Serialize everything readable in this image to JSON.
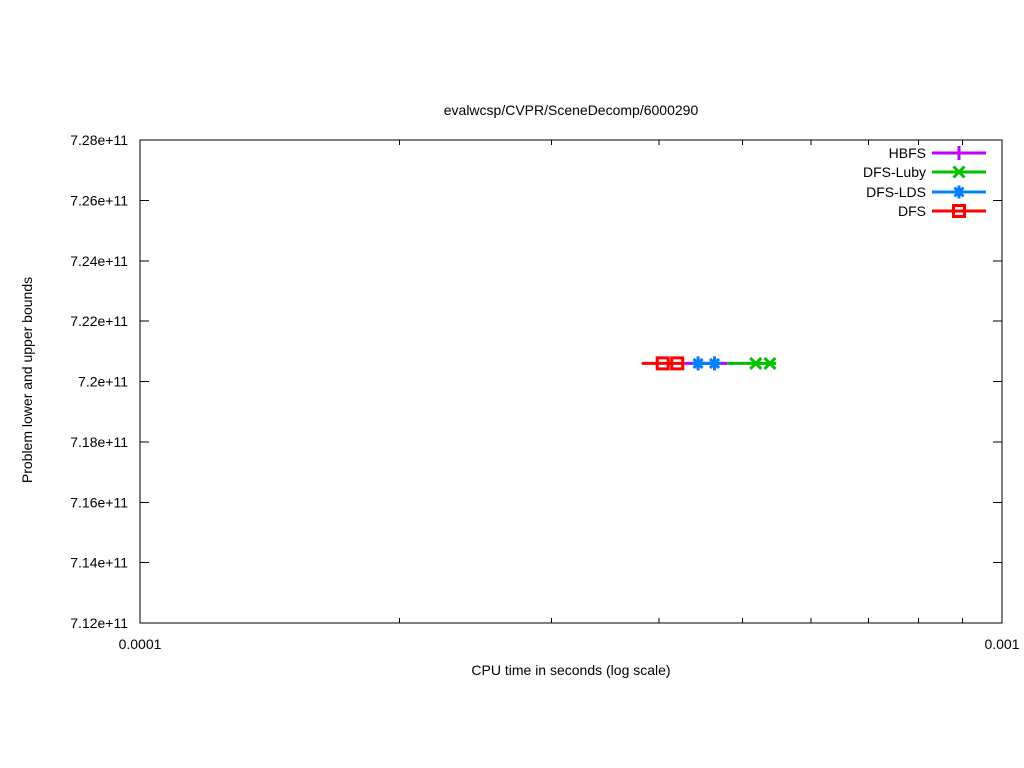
{
  "chart_data": {
    "type": "line",
    "title": "evalwcsp/CVPR/SceneDecomp/6000290",
    "xlabel": "CPU time in seconds (log scale)",
    "ylabel": "Problem lower and upper bounds",
    "x_scale": "log",
    "grid": false,
    "legend_position": "top-right-inside",
    "xlim": [
      0.0001,
      0.001
    ],
    "ylim": [
      712000000000,
      728000000000
    ],
    "x_major_ticks": [
      0.0001,
      0.001
    ],
    "x_major_tick_labels": [
      "0.0001",
      "0.001"
    ],
    "x_minor_ticks": [
      0.0002,
      0.0003,
      0.0004,
      0.0005,
      0.0006,
      0.0007,
      0.0008,
      0.0009
    ],
    "y_ticks": [
      712000000000,
      714000000000,
      716000000000,
      718000000000,
      720000000000,
      722000000000,
      724000000000,
      726000000000,
      728000000000
    ],
    "y_tick_labels": [
      "7.12e+11",
      "7.14e+11",
      "7.16e+11",
      "7.18e+11",
      "7.2e+11",
      "7.22e+11",
      "7.24e+11",
      "7.26e+11",
      "7.28e+11"
    ],
    "bounds_value": 720600000000,
    "series": [
      {
        "name": "HBFS",
        "color": "#c000ff",
        "marker": "plus",
        "y": 720600000000,
        "line_x": [
          0.000428,
          0.00048
        ],
        "marker_x": [
          0.000444,
          0.000464
        ]
      },
      {
        "name": "DFS-Luby",
        "color": "#00c000",
        "marker": "x",
        "y": 720600000000,
        "line_x": [
          0.00048,
          0.000547
        ],
        "marker_x": [
          0.000518,
          0.000538
        ]
      },
      {
        "name": "DFS-LDS",
        "color": "#0080ff",
        "marker": "asterisk",
        "y": 720600000000,
        "line_x": [
          0.000437,
          0.000469
        ],
        "marker_x": [
          0.000444,
          0.000464
        ]
      },
      {
        "name": "DFS",
        "color": "#ff0000",
        "marker": "square",
        "y": 720600000000,
        "line_x": [
          0.000382,
          0.000428
        ],
        "marker_x": [
          0.000404,
          0.00042
        ]
      }
    ]
  }
}
